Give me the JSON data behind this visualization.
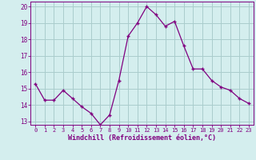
{
  "x": [
    0,
    1,
    2,
    3,
    4,
    5,
    6,
    7,
    8,
    9,
    10,
    11,
    12,
    13,
    14,
    15,
    16,
    17,
    18,
    19,
    20,
    21,
    22,
    23
  ],
  "y": [
    15.3,
    14.3,
    14.3,
    14.9,
    14.4,
    13.9,
    13.5,
    12.8,
    13.4,
    15.5,
    18.2,
    19.0,
    20.0,
    19.5,
    18.8,
    19.1,
    17.6,
    16.2,
    16.2,
    15.5,
    15.1,
    14.9,
    14.4,
    14.1
  ],
  "line_color": "#800080",
  "marker": "+",
  "bg_color": "#d4eeee",
  "grid_color": "#aacccc",
  "xlabel": "Windchill (Refroidissement éolien,°C)",
  "xlabel_color": "#800080",
  "tick_color": "#800080",
  "ylim": [
    13,
    20
  ],
  "yticks": [
    13,
    14,
    15,
    16,
    17,
    18,
    19,
    20
  ],
  "xticks": [
    0,
    1,
    2,
    3,
    4,
    5,
    6,
    7,
    8,
    9,
    10,
    11,
    12,
    13,
    14,
    15,
    16,
    17,
    18,
    19,
    20,
    21,
    22,
    23
  ],
  "figsize": [
    3.2,
    2.0
  ],
  "dpi": 100
}
